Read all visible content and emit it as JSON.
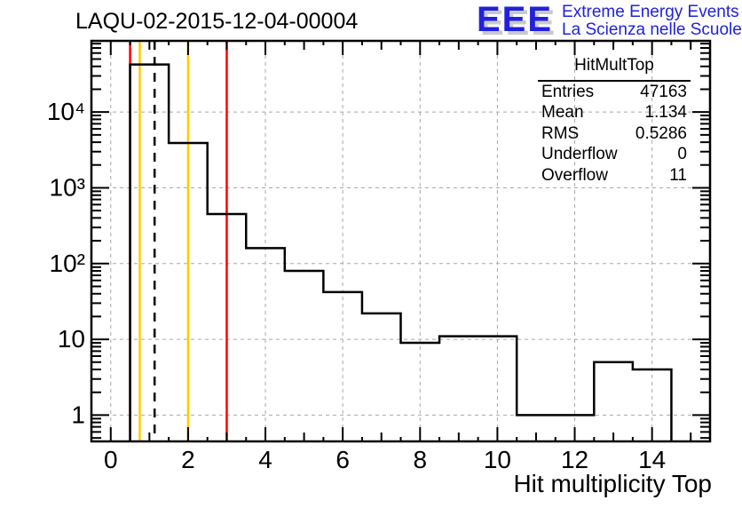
{
  "header": {
    "title": "LAQU-02-2015-12-04-00004"
  },
  "logo": {
    "text": "EEE",
    "line1": "Extreme Energy Events",
    "line2": "La Scienza nelle Scuole",
    "color": "#2121dd",
    "shadow_color": "#c9c9c9"
  },
  "stats": {
    "title": "HitMultTop",
    "rows": [
      [
        "Entries",
        "47163"
      ],
      [
        "Mean",
        "1.134"
      ],
      [
        "RMS",
        "0.5286"
      ],
      [
        "Underflow",
        "0"
      ],
      [
        "Overflow",
        "11"
      ]
    ]
  },
  "chart_data": {
    "type": "bar",
    "subtype": "step-histogram",
    "title": "LAQU-02-2015-12-04-00004",
    "xlabel": "Hit multiplicity Top",
    "ylabel": "",
    "y_scale": "log",
    "grid": true,
    "xlim": [
      -0.5,
      15.5
    ],
    "ylim": [
      0.45,
      87000
    ],
    "bin_width": 1,
    "bin_centers": [
      1,
      2,
      3,
      4,
      5,
      6,
      7,
      8,
      9,
      10,
      11,
      12,
      13,
      14
    ],
    "values": [
      42456,
      3900,
      450,
      160,
      80,
      42,
      22,
      9,
      11,
      11,
      1,
      1,
      5,
      4
    ],
    "x_major_ticks": [
      0,
      2,
      4,
      6,
      8,
      10,
      12,
      14
    ],
    "x_tick_labels": [
      "0",
      "2",
      "4",
      "6",
      "8",
      "10",
      "12",
      "14"
    ],
    "y_major_decades": [
      0,
      1,
      2,
      3,
      4
    ],
    "y_tick_labels": [
      "1",
      "10",
      "10²",
      "10³",
      "10⁴"
    ],
    "line_color": "#000000",
    "grid_color": "#a8a8a8",
    "vlines": [
      {
        "x": 0.5,
        "color": "#ff0000",
        "style": "solid",
        "name": "red-cut-line-low"
      },
      {
        "x": 0.75,
        "color": "#ffcc00",
        "style": "solid",
        "name": "orange-cut-line-low"
      },
      {
        "x": 1.134,
        "color": "#000000",
        "style": "dashed",
        "name": "mean-dashed-line"
      },
      {
        "x": 2,
        "color": "#ffcc00",
        "style": "solid",
        "name": "orange-cut-line-high"
      },
      {
        "x": 3,
        "color": "#ff0000",
        "style": "solid",
        "name": "red-cut-line-high"
      }
    ]
  }
}
